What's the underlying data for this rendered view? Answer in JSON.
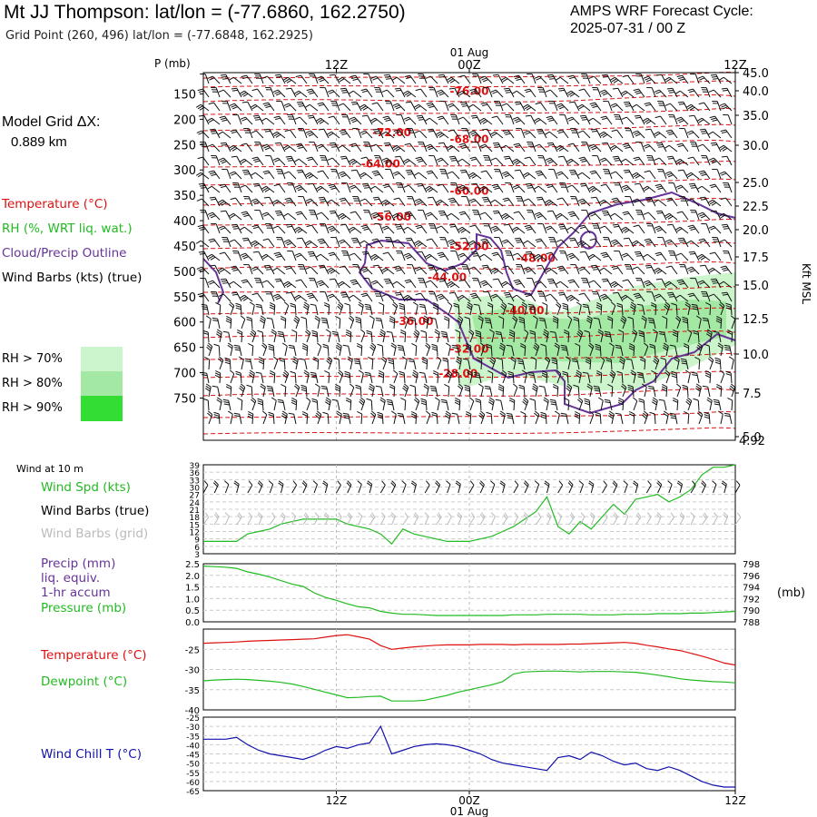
{
  "header": {
    "title": "Mt JJ Thompson:  lat/lon = (-77.6860, 162.2750)",
    "subtitle": "Grid Point (260, 496) lat/lon = (-77.6848, 162.2925)",
    "cycle_line1": "AMPS WRF Forecast Cycle:",
    "cycle_line2": "2025-07-31 / 00  Z"
  },
  "legend": {
    "grid_line1": "Model Grid ΔX:",
    "grid_line2": "0.889 km",
    "temperature": "Temperature (°C)",
    "rh": "RH (%, WRT liq. wat.)",
    "cloud": "Cloud/Precip Outline",
    "barbs": "Wind Barbs (kts) (true)",
    "rh70": "RH > 70%",
    "rh80": "RH > 80%",
    "rh90": "RH > 90%"
  },
  "colors": {
    "temperature": "#dd1111",
    "rh": "#22bb22",
    "cloud": "#663399",
    "precip": "#663399",
    "wind_chill": "#1111aa",
    "grid_barbs": "#bbbbbb",
    "rh70": "#ccf5cc",
    "rh80": "#a3e8a3",
    "rh90": "#33dd33"
  },
  "time_axis": {
    "top_labels": [
      "12Z",
      "00Z",
      "12Z"
    ],
    "date_label": "01 Aug",
    "bottom_labels": [
      "12Z",
      "00Z",
      "12Z"
    ]
  },
  "chart_data": [
    {
      "type": "line",
      "panel": "cross-section",
      "ylabel": "P (mb)",
      "ylabel_right": "Kft MSL",
      "pressure_ticks": [
        150,
        200,
        250,
        300,
        350,
        400,
        450,
        500,
        550,
        600,
        650,
        700,
        750
      ],
      "kft_ticks": [
        "45.0",
        "40.0",
        "35.0",
        "30.0",
        "25.0",
        "22.5",
        "20.0",
        "17.5",
        "15.0",
        "12.5",
        "10.0",
        "7.5",
        "5.0"
      ],
      "kft_extra": "4.92",
      "isotherm_labels": [
        {
          "label": "-76.00",
          "hour": 24,
          "p": 145
        },
        {
          "label": "-72.00",
          "hour": 17,
          "p": 226
        },
        {
          "label": "-68.00",
          "hour": 24,
          "p": 240
        },
        {
          "label": "-64.00",
          "hour": 16,
          "p": 288
        },
        {
          "label": "-60.00",
          "hour": 24,
          "p": 342
        },
        {
          "label": "-56.00",
          "hour": 17,
          "p": 393
        },
        {
          "label": "-52.00",
          "hour": 24,
          "p": 451
        },
        {
          "label": "-48.00",
          "hour": 30,
          "p": 474
        },
        {
          "label": "-44.00",
          "hour": 22,
          "p": 512
        },
        {
          "label": "-40.00",
          "hour": 29,
          "p": 577
        },
        {
          "label": "-36.00",
          "hour": 19,
          "p": 599
        },
        {
          "label": "-32.00",
          "hour": 24,
          "p": 653
        },
        {
          "label": "-28.00",
          "hour": 23,
          "p": 702
        }
      ]
    },
    {
      "type": "line",
      "panel": "wind",
      "title": "Wind at 10 m",
      "labels": [
        "Wind Spd (kts)",
        "Wind Barbs (true)",
        "Wind Barbs (grid)"
      ],
      "ylim": [
        3,
        39
      ],
      "yticks": [
        3,
        6,
        9,
        12,
        15,
        18,
        21,
        24,
        27,
        30,
        33,
        36,
        39
      ],
      "x": [
        0,
        1,
        2,
        3,
        4,
        5,
        6,
        7,
        8,
        9,
        10,
        11,
        12,
        13,
        14,
        15,
        16,
        17,
        18,
        19,
        20,
        21,
        22,
        23,
        24,
        25,
        26,
        27,
        28,
        29,
        30,
        31,
        32,
        33,
        34,
        35,
        36,
        37,
        38,
        39,
        40,
        41,
        42,
        43,
        44,
        45,
        46,
        47,
        48
      ],
      "series": [
        {
          "name": "Wind Spd (kts)",
          "values": [
            8,
            8,
            8,
            8,
            11,
            12,
            13,
            15,
            16,
            17,
            17,
            17,
            17,
            15,
            14,
            13,
            11,
            7,
            13,
            11,
            10,
            9,
            8,
            8,
            8,
            9,
            10,
            12,
            14,
            17,
            20,
            26,
            14,
            11,
            16,
            13,
            18,
            23,
            19,
            25,
            26,
            27,
            24,
            26,
            29,
            35,
            38,
            38,
            39
          ]
        }
      ]
    },
    {
      "type": "line",
      "panel": "precip-pressure",
      "labels": [
        "Precip (mm)",
        "liq. equiv.",
        "1-hr accum",
        "Pressure (mb)"
      ],
      "ylim": [
        0,
        2.5
      ],
      "yticks": [
        "0.0",
        "0.5",
        "1.0",
        "1.5",
        "2.0",
        "2.5"
      ],
      "ylim_right": [
        788,
        798
      ],
      "yticks_right": [
        788,
        790,
        792,
        794,
        796,
        798
      ],
      "ylabel_right": "(mb)",
      "x": [
        0,
        1,
        2,
        3,
        4,
        5,
        6,
        7,
        8,
        9,
        10,
        11,
        12,
        13,
        14,
        15,
        16,
        17,
        18,
        19,
        20,
        21,
        22,
        23,
        24,
        25,
        26,
        27,
        28,
        29,
        30,
        31,
        32,
        33,
        34,
        35,
        36,
        37,
        38,
        39,
        40,
        41,
        42,
        43,
        44,
        45,
        46,
        47,
        48
      ],
      "series": [
        {
          "name": "Pressure (mb)",
          "values": [
            797.6,
            797.5,
            797.4,
            797.2,
            796.6,
            796.2,
            795.7,
            795.1,
            794.5,
            794.1,
            793.0,
            792.2,
            791.7,
            791.1,
            790.6,
            790.4,
            789.8,
            789.5,
            789.3,
            789.3,
            789.2,
            789.1,
            789.1,
            789.1,
            789.1,
            789.1,
            789.1,
            789.1,
            789.2,
            789.2,
            789.2,
            789.3,
            789.3,
            789.3,
            789.3,
            789.2,
            789.2,
            789.2,
            789.3,
            789.3,
            789.3,
            789.4,
            789.4,
            789.4,
            789.5,
            789.5,
            789.6,
            789.7,
            789.8
          ]
        }
      ]
    },
    {
      "type": "line",
      "panel": "temperature",
      "labels": [
        "Temperature (°C)",
        "Dewpoint (°C)"
      ],
      "ylim": [
        -40,
        -20
      ],
      "yticks": [
        -40,
        -35,
        -30,
        -25
      ],
      "x": [
        0,
        1,
        2,
        3,
        4,
        5,
        6,
        7,
        8,
        9,
        10,
        11,
        12,
        13,
        14,
        15,
        16,
        17,
        18,
        19,
        20,
        21,
        22,
        23,
        24,
        25,
        26,
        27,
        28,
        29,
        30,
        31,
        32,
        33,
        34,
        35,
        36,
        37,
        38,
        39,
        40,
        41,
        42,
        43,
        44,
        45,
        46,
        47,
        48
      ],
      "series": [
        {
          "name": "Temperature (°C)",
          "values": [
            -23.5,
            -23.4,
            -23.3,
            -23.2,
            -23.0,
            -22.9,
            -22.8,
            -22.7,
            -22.6,
            -22.5,
            -22.4,
            -22.0,
            -21.6,
            -21.4,
            -21.9,
            -22.5,
            -24.1,
            -25.0,
            -24.7,
            -24.4,
            -24.2,
            -24.0,
            -23.9,
            -23.9,
            -23.9,
            -23.8,
            -23.8,
            -23.8,
            -23.9,
            -23.8,
            -23.8,
            -23.8,
            -23.8,
            -23.7,
            -23.7,
            -23.6,
            -23.5,
            -23.4,
            -23.3,
            -23.5,
            -24.0,
            -24.4,
            -24.9,
            -25.3,
            -26.0,
            -26.7,
            -27.5,
            -28.4,
            -28.9
          ]
        },
        {
          "name": "Dewpoint (°C)",
          "values": [
            -32.8,
            -32.6,
            -32.5,
            -32.4,
            -32.5,
            -32.7,
            -32.9,
            -33.2,
            -33.6,
            -34.2,
            -34.9,
            -35.6,
            -36.3,
            -37.0,
            -36.9,
            -36.7,
            -36.6,
            -37.8,
            -37.8,
            -37.8,
            -37.6,
            -37.0,
            -36.4,
            -35.6,
            -35.0,
            -34.4,
            -33.8,
            -33.0,
            -31.1,
            -30.6,
            -30.5,
            -30.4,
            -30.4,
            -30.5,
            -30.6,
            -30.5,
            -30.5,
            -30.5,
            -30.6,
            -30.7,
            -31.0,
            -31.4,
            -31.8,
            -32.3,
            -32.6,
            -32.8,
            -33.0,
            -33.1,
            -33.3
          ]
        }
      ]
    },
    {
      "type": "line",
      "panel": "wind-chill",
      "labels": [
        "Wind Chill T (°C)"
      ],
      "ylim": [
        -65,
        -25
      ],
      "yticks": [
        -25,
        -30,
        -35,
        -40,
        -45,
        -50,
        -55,
        -60,
        -65
      ],
      "x": [
        0,
        1,
        2,
        3,
        4,
        5,
        6,
        7,
        8,
        9,
        10,
        11,
        12,
        13,
        14,
        15,
        16,
        17,
        18,
        19,
        20,
        21,
        22,
        23,
        24,
        25,
        26,
        27,
        28,
        29,
        30,
        31,
        32,
        33,
        34,
        35,
        36,
        37,
        38,
        39,
        40,
        41,
        42,
        43,
        44,
        45,
        46,
        47,
        48
      ],
      "series": [
        {
          "name": "Wind Chill T (°C)",
          "values": [
            -37.0,
            -37.0,
            -37.0,
            -36.0,
            -40.0,
            -43.0,
            -45.0,
            -46.0,
            -47.0,
            -48.0,
            -46.0,
            -43.0,
            -41.0,
            -42.0,
            -40.0,
            -39.0,
            -30.0,
            -45.0,
            -43.0,
            -41.0,
            -40.0,
            -39.5,
            -40.0,
            -41.0,
            -43.0,
            -45.0,
            -48.0,
            -50.0,
            -51.0,
            -52.0,
            -53.0,
            -54.0,
            -47.0,
            -46.0,
            -48.0,
            -44.0,
            -46.0,
            -49.0,
            -51.0,
            -50.0,
            -53.0,
            -54.0,
            -52.0,
            -54.0,
            -57.0,
            -60.0,
            -62.0,
            -63.0,
            -63.0
          ]
        }
      ]
    }
  ]
}
